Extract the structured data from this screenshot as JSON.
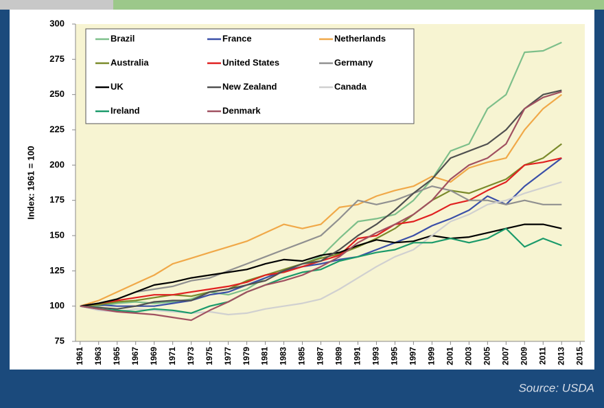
{
  "chart_data": {
    "type": "line",
    "ylabel": "Index: 1961 = 100",
    "caption": "Source: USDA",
    "x": [
      1961,
      1963,
      1965,
      1967,
      1969,
      1971,
      1973,
      1975,
      1977,
      1979,
      1981,
      1983,
      1985,
      1987,
      1989,
      1991,
      1993,
      1995,
      1997,
      1999,
      2001,
      2003,
      2005,
      2007,
      2009,
      2011,
      2013
    ],
    "xlim": [
      1960.5,
      2015.5
    ],
    "xticks": [
      1961,
      1963,
      1965,
      1967,
      1969,
      1971,
      1973,
      1975,
      1977,
      1979,
      1981,
      1983,
      1985,
      1987,
      1989,
      1991,
      1993,
      1995,
      1997,
      1999,
      2001,
      2003,
      2005,
      2007,
      2009,
      2011,
      2013,
      2015
    ],
    "ylim": [
      75,
      300
    ],
    "yticks": [
      75,
      100,
      125,
      150,
      175,
      200,
      225,
      250,
      275,
      300
    ],
    "legend": "upper left",
    "series": [
      {
        "name": "Brazil",
        "color": "#7dbf8a",
        "values": [
          100,
          100,
          102,
          103,
          102,
          103,
          105,
          110,
          108,
          112,
          120,
          125,
          130,
          135,
          148,
          160,
          162,
          165,
          175,
          190,
          210,
          215,
          240,
          250,
          280,
          281,
          287
        ]
      },
      {
        "name": "France",
        "color": "#3a4fa8",
        "values": [
          100,
          101,
          100,
          100,
          100,
          102,
          104,
          108,
          110,
          115,
          120,
          125,
          128,
          130,
          133,
          135,
          140,
          145,
          150,
          157,
          162,
          168,
          178,
          172,
          185,
          195,
          205
        ]
      },
      {
        "name": "Netherlands",
        "color": "#f0a848",
        "values": [
          100,
          104,
          110,
          116,
          122,
          130,
          134,
          138,
          142,
          146,
          152,
          158,
          155,
          158,
          170,
          172,
          178,
          182,
          185,
          192,
          188,
          198,
          202,
          205,
          225,
          240,
          250
        ]
      },
      {
        "name": "Australia",
        "color": "#7a8a2a",
        "values": [
          100,
          101,
          103,
          104,
          106,
          108,
          107,
          110,
          112,
          118,
          122,
          126,
          130,
          134,
          137,
          142,
          148,
          155,
          165,
          175,
          182,
          180,
          185,
          190,
          200,
          205,
          215
        ]
      },
      {
        "name": "United States",
        "color": "#e02020",
        "values": [
          100,
          102,
          104,
          106,
          108,
          108,
          110,
          112,
          114,
          117,
          122,
          124,
          128,
          132,
          136,
          148,
          150,
          158,
          160,
          165,
          172,
          175,
          182,
          188,
          200,
          202,
          205
        ]
      },
      {
        "name": "Germany",
        "color": "#909090",
        "values": [
          100,
          102,
          105,
          110,
          112,
          114,
          118,
          120,
          125,
          130,
          135,
          140,
          145,
          150,
          162,
          175,
          172,
          175,
          180,
          185,
          182,
          175,
          175,
          172,
          175,
          172,
          172
        ]
      },
      {
        "name": "UK",
        "color": "#000000",
        "values": [
          100,
          102,
          105,
          110,
          115,
          117,
          120,
          122,
          124,
          126,
          130,
          133,
          132,
          136,
          138,
          143,
          147,
          145,
          146,
          150,
          148,
          149,
          152,
          155,
          158,
          158,
          155
        ]
      },
      {
        "name": "New Zealand",
        "color": "#505050",
        "values": [
          100,
          99,
          98,
          100,
          103,
          104,
          104,
          110,
          112,
          115,
          118,
          125,
          130,
          132,
          140,
          150,
          158,
          168,
          180,
          190,
          205,
          210,
          215,
          225,
          240,
          250,
          253
        ]
      },
      {
        "name": "Canada",
        "color": "#d0d0d0",
        "values": [
          100,
          97,
          96,
          98,
          97,
          96,
          95,
          96,
          94,
          95,
          98,
          100,
          102,
          105,
          112,
          120,
          128,
          135,
          140,
          150,
          160,
          165,
          172,
          175,
          180,
          184,
          188
        ]
      },
      {
        "name": "Ireland",
        "color": "#1a9a6a",
        "values": [
          100,
          98,
          97,
          96,
          98,
          97,
          95,
          100,
          103,
          110,
          115,
          120,
          124,
          126,
          132,
          135,
          138,
          140,
          145,
          145,
          148,
          145,
          148,
          155,
          142,
          148,
          143
        ]
      },
      {
        "name": "Denmark",
        "color": "#a05060",
        "values": [
          100,
          98,
          96,
          95,
          94,
          92,
          90,
          97,
          103,
          110,
          115,
          118,
          122,
          128,
          135,
          145,
          152,
          158,
          165,
          175,
          190,
          200,
          205,
          215,
          240,
          248,
          252
        ]
      }
    ]
  }
}
